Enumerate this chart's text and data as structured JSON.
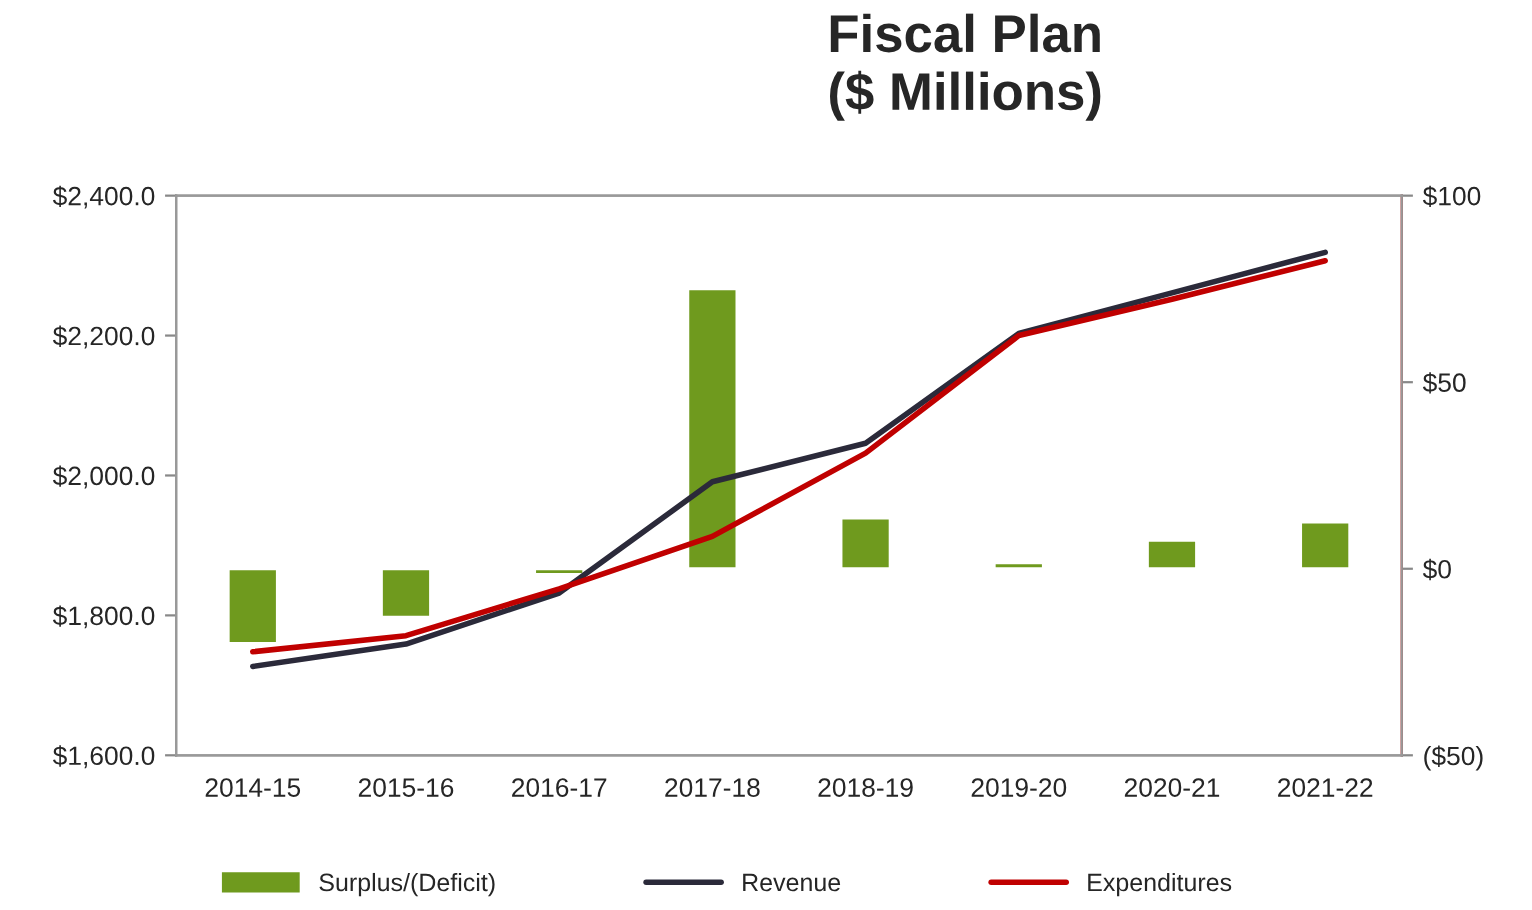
{
  "chart_data": {
    "type": "bar",
    "title": "Fiscal Plan\n($ Millions)",
    "categories": [
      "2014-15",
      "2015-16",
      "2016-17",
      "2017-18",
      "2018-19",
      "2019-20",
      "2020-21",
      "2021-22"
    ],
    "series": [
      {
        "name": "Surplus/(Deficit)",
        "axis": "y2",
        "color": "#6f9a1e",
        "values": [
          -20,
          -13,
          -1.5,
          75,
          13.6,
          1.6,
          7.6,
          12.5
        ]
      },
      {
        "name": "Revenue",
        "type": "line",
        "color": "#2b2a3a",
        "values": [
          1727,
          1759,
          1832,
          1991,
          2046,
          2203,
          2261,
          2319
        ]
      },
      {
        "name": "Expenditures",
        "type": "line",
        "color": "#c00000",
        "values": [
          1748,
          1771,
          1838,
          1913,
          2032,
          2200,
          2252,
          2307
        ]
      }
    ],
    "ylim": [
      1600,
      2400
    ],
    "yticks": [
      {
        "value": 1600,
        "label": "$1,600.0"
      },
      {
        "value": 1800,
        "label": "$1,800.0"
      },
      {
        "value": 2000,
        "label": "$2,000.0"
      },
      {
        "value": 2200,
        "label": "$2,200.0"
      },
      {
        "value": 2400,
        "label": "$2,400.0"
      }
    ],
    "y2lim": [
      -50,
      100
    ],
    "y2ticks": [
      {
        "value": -50,
        "label": "($50)"
      },
      {
        "value": 0,
        "label": "$0"
      },
      {
        "value": 50,
        "label": "$50"
      },
      {
        "value": 100,
        "label": "$100"
      }
    ],
    "legend": "bottom",
    "grid": false,
    "marker": "none",
    "line_style": "solid"
  }
}
